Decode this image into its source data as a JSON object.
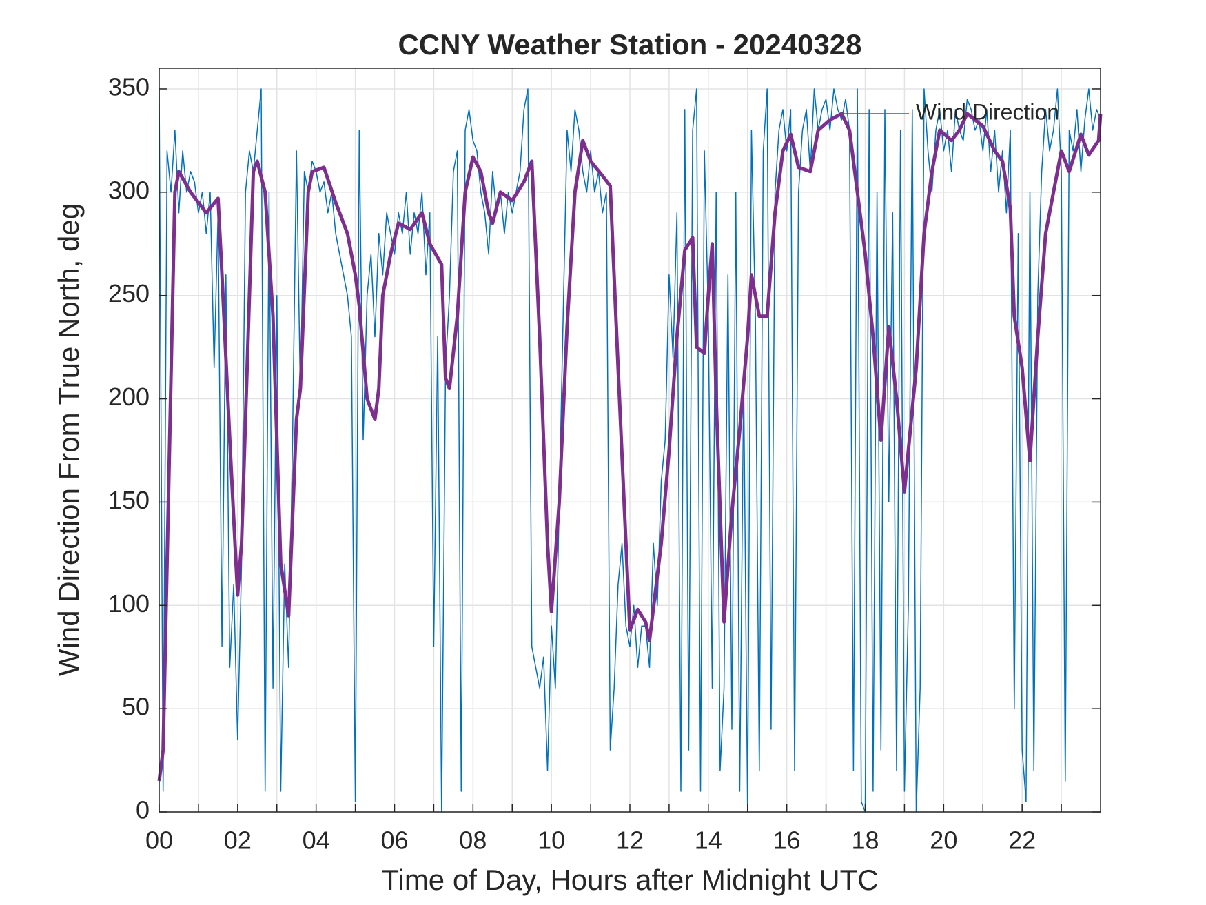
{
  "chart_data": {
    "type": "line",
    "title": "CCNY Weather Station - 20240328",
    "xlabel": "Time of Day, Hours after Midnight UTC",
    "ylabel": "Wind Direction From True North, deg",
    "xlim": [
      0,
      24
    ],
    "ylim": [
      0,
      360
    ],
    "xticks": [
      {
        "value": 0,
        "label": "00"
      },
      {
        "value": 2,
        "label": "02"
      },
      {
        "value": 4,
        "label": "04"
      },
      {
        "value": 6,
        "label": "06"
      },
      {
        "value": 8,
        "label": "08"
      },
      {
        "value": 10,
        "label": "10"
      },
      {
        "value": 12,
        "label": "12"
      },
      {
        "value": 14,
        "label": "14"
      },
      {
        "value": 16,
        "label": "16"
      },
      {
        "value": 18,
        "label": "18"
      },
      {
        "value": 20,
        "label": "20"
      },
      {
        "value": 22,
        "label": "22"
      }
    ],
    "xminorticks": [
      1,
      3,
      5,
      7,
      9,
      11,
      13,
      15,
      17,
      19,
      21,
      23
    ],
    "yticks": [
      0,
      50,
      100,
      150,
      200,
      250,
      300,
      350
    ],
    "grid": true,
    "legend": "top-right",
    "series": [
      {
        "name": "Wind Direction",
        "color": "#0072bd",
        "width": 1.5,
        "x": [
          0,
          0.1,
          0.2,
          0.3,
          0.4,
          0.5,
          0.6,
          0.7,
          0.8,
          0.9,
          1,
          1.1,
          1.2,
          1.3,
          1.4,
          1.5,
          1.6,
          1.7,
          1.8,
          1.9,
          2,
          2.1,
          2.2,
          2.3,
          2.4,
          2.5,
          2.6,
          2.7,
          2.8,
          2.9,
          3,
          3.1,
          3.2,
          3.3,
          3.4,
          3.5,
          3.6,
          3.7,
          3.8,
          3.9,
          4,
          4.1,
          4.2,
          4.3,
          4.4,
          4.5,
          4.6,
          4.7,
          4.8,
          4.9,
          5,
          5.1,
          5.2,
          5.3,
          5.4,
          5.5,
          5.6,
          5.7,
          5.8,
          5.9,
          6,
          6.1,
          6.2,
          6.3,
          6.4,
          6.5,
          6.6,
          6.7,
          6.8,
          6.9,
          7,
          7.1,
          7.2,
          7.3,
          7.4,
          7.5,
          7.6,
          7.7,
          7.8,
          7.9,
          8,
          8.1,
          8.2,
          8.3,
          8.4,
          8.5,
          8.6,
          8.7,
          8.8,
          8.9,
          9,
          9.1,
          9.2,
          9.3,
          9.4,
          9.5,
          9.6,
          9.7,
          9.8,
          9.9,
          10,
          10.1,
          10.2,
          10.3,
          10.4,
          10.5,
          10.6,
          10.7,
          10.8,
          10.9,
          11,
          11.1,
          11.2,
          11.3,
          11.4,
          11.5,
          11.6,
          11.7,
          11.8,
          11.9,
          12,
          12.1,
          12.2,
          12.3,
          12.4,
          12.5,
          12.6,
          12.7,
          12.8,
          12.9,
          13,
          13.1,
          13.2,
          13.3,
          13.4,
          13.5,
          13.6,
          13.7,
          13.8,
          13.9,
          14,
          14.1,
          14.2,
          14.3,
          14.4,
          14.5,
          14.6,
          14.7,
          14.8,
          14.9,
          15,
          15.1,
          15.2,
          15.3,
          15.4,
          15.5,
          15.6,
          15.7,
          15.8,
          15.9,
          16,
          16.1,
          16.2,
          16.3,
          16.4,
          16.5,
          16.6,
          16.7,
          16.8,
          16.9,
          17,
          17.1,
          17.2,
          17.3,
          17.4,
          17.5,
          17.6,
          17.7,
          17.8,
          17.9,
          18,
          18.1,
          18.2,
          18.3,
          18.4,
          18.5,
          18.6,
          18.7,
          18.8,
          18.9,
          19,
          19.1,
          19.2,
          19.3,
          19.4,
          19.5,
          19.6,
          19.7,
          19.8,
          19.9,
          20,
          20.1,
          20.2,
          20.3,
          20.4,
          20.5,
          20.6,
          20.7,
          20.8,
          20.9,
          21,
          21.1,
          21.2,
          21.3,
          21.4,
          21.5,
          21.6,
          21.7,
          21.8,
          21.9,
          22,
          22.1,
          22.2,
          22.3,
          22.4,
          22.5,
          22.6,
          22.7,
          22.8,
          22.9,
          23,
          23.1,
          23.2,
          23.3,
          23.4,
          23.5,
          23.6,
          23.7,
          23.8,
          23.9,
          24
        ],
        "values": [
          350,
          10,
          320,
          300,
          330,
          290,
          320,
          300,
          310,
          305,
          290,
          300,
          280,
          300,
          215,
          290,
          80,
          260,
          70,
          110,
          35,
          120,
          300,
          320,
          310,
          330,
          350,
          10,
          300,
          60,
          250,
          10,
          120,
          70,
          180,
          320,
          200,
          310,
          300,
          315,
          310,
          300,
          305,
          290,
          300,
          280,
          270,
          260,
          250,
          230,
          5,
          330,
          180,
          250,
          270,
          230,
          280,
          260,
          290,
          280,
          270,
          290,
          280,
          300,
          270,
          290,
          280,
          300,
          260,
          290,
          80,
          230,
          0,
          215,
          250,
          310,
          320,
          10,
          330,
          340,
          325,
          320,
          300,
          290,
          270,
          310,
          290,
          300,
          280,
          300,
          290,
          300,
          310,
          340,
          350,
          80,
          70,
          60,
          75,
          20,
          90,
          60,
          150,
          240,
          330,
          310,
          340,
          330,
          310,
          300,
          320,
          300,
          310,
          290,
          300,
          30,
          60,
          110,
          130,
          90,
          80,
          100,
          70,
          90,
          90,
          70,
          130,
          100,
          160,
          180,
          260,
          220,
          290,
          10,
          340,
          30,
          330,
          350,
          10,
          320,
          240,
          60,
          300,
          20,
          60,
          260,
          40,
          300,
          10,
          210,
          0,
          330,
          240,
          20,
          320,
          350,
          40,
          300,
          330,
          340,
          320,
          340,
          20,
          300,
          330,
          340,
          310,
          350,
          330,
          340,
          345,
          330,
          350,
          340,
          335,
          345,
          330,
          20,
          350,
          5,
          0,
          340,
          10,
          300,
          30,
          340,
          150,
          290,
          20,
          330,
          10,
          100,
          340,
          0,
          60,
          350,
          320,
          300,
          330,
          340,
          320,
          330,
          310,
          340,
          330,
          325,
          345,
          340,
          330,
          335,
          320,
          340,
          310,
          330,
          300,
          320,
          290,
          330,
          50,
          280,
          30,
          5,
          300,
          20,
          250,
          310,
          340,
          320,
          330,
          350,
          310,
          15,
          330,
          320,
          340,
          310,
          335,
          350,
          330,
          340,
          335
        ]
      },
      {
        "color": "#7e2f8e",
        "width": 5,
        "x": [
          0,
          0.1,
          0.4,
          0.5,
          0.8,
          1.2,
          1.5,
          1.6,
          1.8,
          2,
          2.1,
          2.3,
          2.4,
          2.5,
          2.7,
          2.9,
          3.1,
          3.3,
          3.5,
          3.6,
          3.8,
          3.9,
          4.2,
          4.5,
          4.8,
          5,
          5.1,
          5.3,
          5.5,
          5.6,
          5.7,
          5.9,
          6.1,
          6.4,
          6.7,
          6.9,
          7.2,
          7.3,
          7.4,
          7.6,
          7.8,
          8,
          8.2,
          8.4,
          8.5,
          8.7,
          9,
          9.3,
          9.5,
          9.7,
          9.9,
          10,
          10.2,
          10.4,
          10.6,
          10.8,
          11,
          11.3,
          11.5,
          11.7,
          11.9,
          12,
          12.2,
          12.4,
          12.5,
          12.8,
          13,
          13.2,
          13.4,
          13.6,
          13.7,
          13.9,
          14,
          14.1,
          14.2,
          14.4,
          14.6,
          14.8,
          15,
          15.1,
          15.3,
          15.5,
          15.7,
          15.9,
          16.1,
          16.3,
          16.6,
          16.8,
          17.1,
          17.4,
          17.6,
          17.8,
          18,
          18.2,
          18.4,
          18.6,
          18.8,
          19,
          19.3,
          19.5,
          19.7,
          19.9,
          20.2,
          20.4,
          20.6,
          21,
          21.3,
          21.5,
          21.7,
          21.8,
          22,
          22.2,
          22.4,
          22.6,
          22.8,
          23,
          23.2,
          23.5,
          23.7,
          23.95,
          24
        ],
        "values": [
          15,
          30,
          300,
          310,
          300,
          290,
          297,
          260,
          180,
          105,
          130,
          250,
          310,
          315,
          300,
          240,
          120,
          95,
          190,
          205,
          300,
          310,
          312,
          295,
          280,
          260,
          245,
          200,
          190,
          205,
          250,
          270,
          285,
          282,
          290,
          275,
          265,
          210,
          205,
          240,
          300,
          317,
          310,
          290,
          285,
          300,
          296,
          305,
          315,
          230,
          130,
          97,
          150,
          235,
          300,
          325,
          315,
          308,
          303,
          215,
          130,
          88,
          98,
          92,
          83,
          130,
          175,
          230,
          272,
          278,
          225,
          222,
          250,
          275,
          200,
          92,
          145,
          185,
          230,
          260,
          240,
          240,
          290,
          320,
          328,
          312,
          310,
          330,
          335,
          338,
          330,
          300,
          270,
          230,
          180,
          235,
          200,
          155,
          215,
          280,
          310,
          330,
          325,
          330,
          338,
          332,
          320,
          315,
          292,
          240,
          215,
          170,
          230,
          280,
          300,
          320,
          310,
          328,
          318,
          325,
          338
        ]
      }
    ]
  }
}
